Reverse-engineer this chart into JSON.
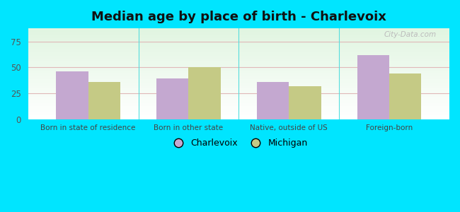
{
  "title": "Median age by place of birth - Charlevoix",
  "categories": [
    "Born in state of residence",
    "Born in other state",
    "Native, outside of US",
    "Foreign-born"
  ],
  "charlevoix_values": [
    46,
    39,
    36,
    62
  ],
  "michigan_values": [
    36,
    50,
    32,
    44
  ],
  "charlevoix_color": "#c4a8d0",
  "michigan_color": "#c5ca85",
  "background_outer": "#00e5ff",
  "ylim": [
    0,
    87.5
  ],
  "yticks": [
    0,
    25,
    50,
    75
  ],
  "bar_width": 0.32,
  "title_fontsize": 13,
  "legend_labels": [
    "Charlevoix",
    "Michigan"
  ],
  "watermark": "City-Data.com"
}
